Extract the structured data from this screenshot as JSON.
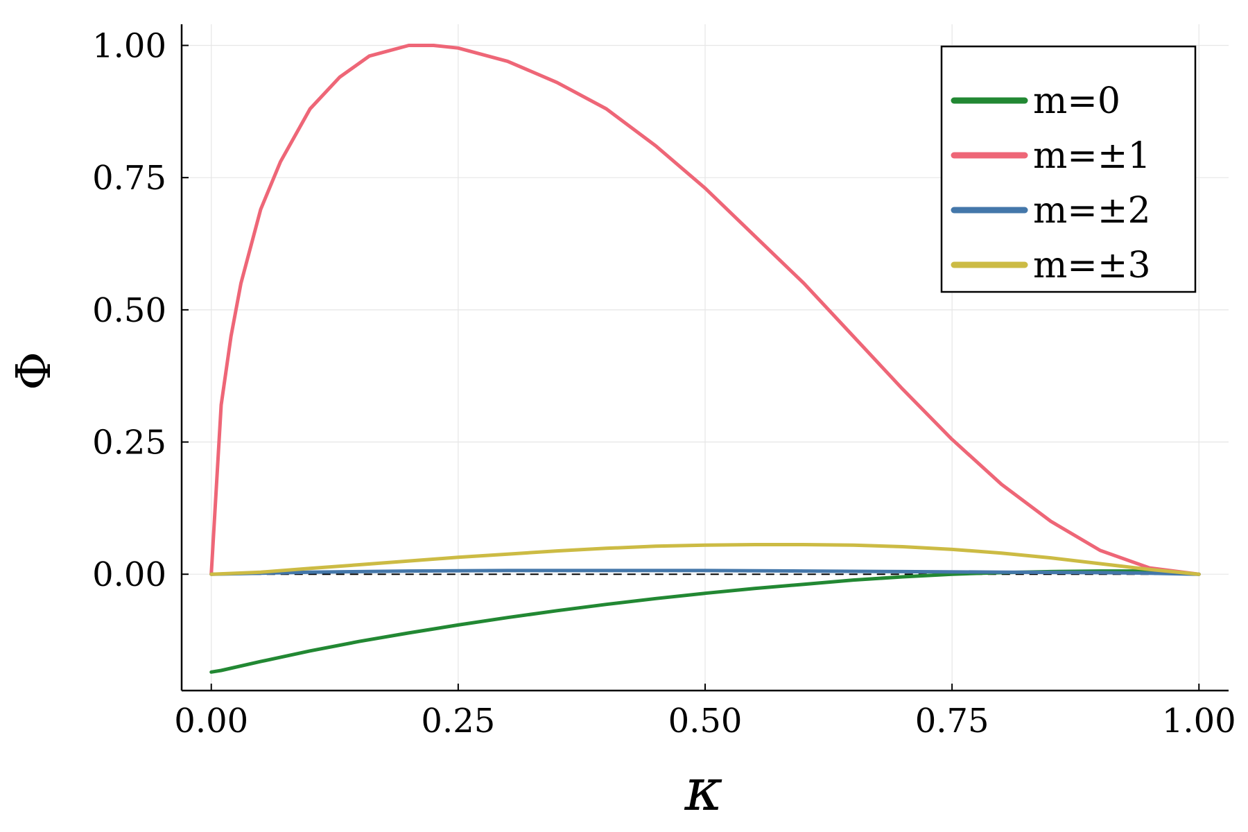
{
  "chart_data": {
    "type": "line",
    "xlabel": "κ",
    "ylabel": "Φ",
    "xlim": [
      -0.03,
      1.03
    ],
    "ylim": [
      -0.22,
      1.04
    ],
    "xticks": [
      0.0,
      0.25,
      0.5,
      0.75,
      1.0
    ],
    "xtick_labels": [
      "0.00",
      "0.25",
      "0.50",
      "0.75",
      "1.00"
    ],
    "yticks": [
      0.0,
      0.25,
      0.5,
      0.75,
      1.0
    ],
    "ytick_labels": [
      "0.00",
      "0.25",
      "0.50",
      "0.75",
      "1.00"
    ],
    "grid": true,
    "legend_position": "top-right",
    "reference_line": {
      "y": 0,
      "style": "dashed",
      "color": "#000000"
    },
    "series": [
      {
        "name": "m=0",
        "color": "#228833",
        "x": [
          0.0,
          0.01,
          0.05,
          0.1,
          0.15,
          0.2,
          0.25,
          0.3,
          0.35,
          0.4,
          0.45,
          0.5,
          0.55,
          0.6,
          0.65,
          0.7,
          0.75,
          0.8,
          0.85,
          0.9,
          0.95,
          1.0
        ],
        "y": [
          -0.185,
          -0.182,
          -0.165,
          -0.145,
          -0.127,
          -0.111,
          -0.096,
          -0.082,
          -0.069,
          -0.057,
          -0.046,
          -0.036,
          -0.027,
          -0.019,
          -0.011,
          -0.005,
          0.0,
          0.003,
          0.005,
          0.006,
          0.006,
          0.0
        ]
      },
      {
        "name": "m=±1",
        "color": "#EE6677",
        "x": [
          0.0,
          0.01,
          0.02,
          0.03,
          0.05,
          0.07,
          0.1,
          0.13,
          0.16,
          0.2,
          0.225,
          0.25,
          0.3,
          0.35,
          0.4,
          0.45,
          0.5,
          0.55,
          0.6,
          0.65,
          0.7,
          0.75,
          0.8,
          0.85,
          0.9,
          0.95,
          1.0
        ],
        "y": [
          0.0,
          0.32,
          0.45,
          0.55,
          0.69,
          0.78,
          0.88,
          0.94,
          0.98,
          1.0,
          1.0,
          0.995,
          0.97,
          0.93,
          0.88,
          0.81,
          0.73,
          0.64,
          0.55,
          0.45,
          0.35,
          0.255,
          0.17,
          0.1,
          0.045,
          0.012,
          0.0
        ]
      },
      {
        "name": "m=±2",
        "color": "#4477AA",
        "x": [
          0.0,
          0.05,
          0.1,
          0.2,
          0.3,
          0.4,
          0.5,
          0.6,
          0.7,
          0.8,
          0.9,
          0.95,
          1.0
        ],
        "y": [
          0.0,
          0.002,
          0.004,
          0.006,
          0.007,
          0.007,
          0.007,
          0.006,
          0.005,
          0.004,
          0.003,
          0.002,
          0.0
        ]
      },
      {
        "name": "m=±3",
        "color": "#CCBB44",
        "x": [
          0.0,
          0.05,
          0.1,
          0.15,
          0.2,
          0.25,
          0.3,
          0.35,
          0.4,
          0.45,
          0.5,
          0.55,
          0.6,
          0.65,
          0.7,
          0.75,
          0.8,
          0.85,
          0.9,
          0.95,
          1.0
        ],
        "y": [
          0.0,
          0.004,
          0.011,
          0.018,
          0.025,
          0.032,
          0.038,
          0.044,
          0.049,
          0.053,
          0.055,
          0.056,
          0.056,
          0.055,
          0.052,
          0.047,
          0.04,
          0.031,
          0.02,
          0.009,
          0.0
        ]
      }
    ]
  }
}
